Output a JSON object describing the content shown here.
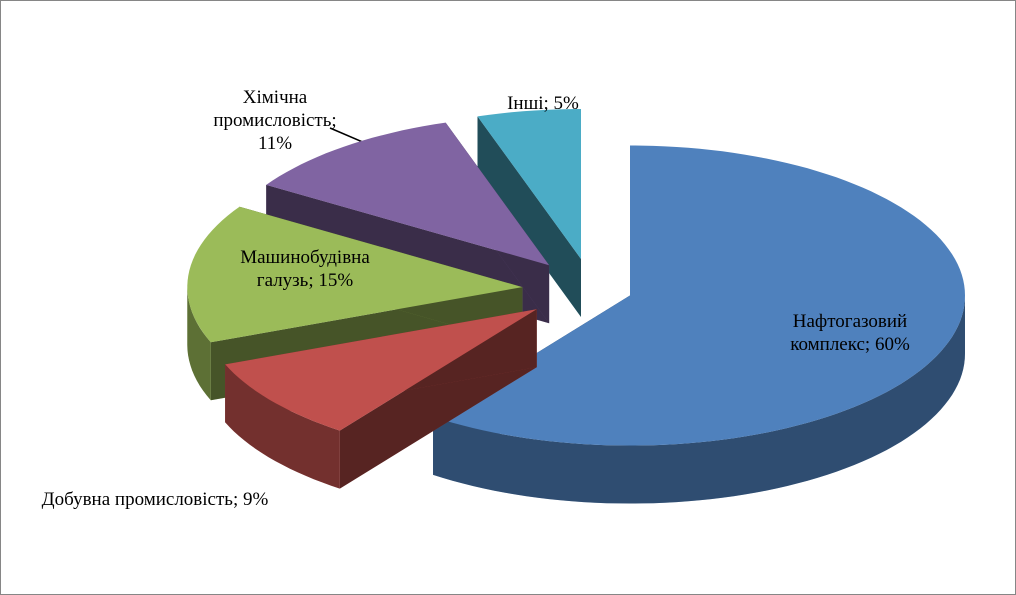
{
  "chart_data": {
    "type": "pie3d",
    "values": [
      60,
      9,
      15,
      11,
      5
    ],
    "value_labels": [
      "Нафтогазовий комплекс; 60%",
      "Добувна промисловість; 9%",
      "Машинобудівна галузь; 15%",
      "Хімічна промисловість; 11%",
      "Інші; 5%"
    ],
    "colors": [
      "#4f81bd",
      "#c0504d",
      "#9bbb59",
      "#8064a2",
      "#4bacc6"
    ]
  }
}
